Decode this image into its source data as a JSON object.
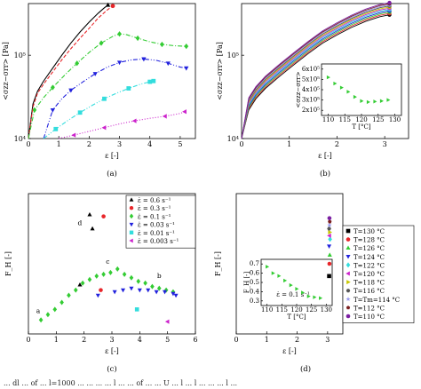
{
  "caption_text": "... dl ... of ... l=1000 ... ... ... ... l ... ... of ... ... U ... l ... l ... ... ... l ...",
  "chart_data": [
    {
      "id": "a",
      "type": "line",
      "panel_label": "(a)",
      "xlabel": "ε [-]",
      "ylabel": "<σzz−σrr> [Pa]",
      "xlim": [
        0,
        5.5
      ],
      "ylim_log10": [
        4,
        5.62
      ],
      "yscale": "log",
      "xticks": [
        0,
        1,
        2,
        3,
        4,
        5
      ],
      "yticks": [
        {
          "v": 10000,
          "label": "10⁴"
        },
        {
          "v": 100000,
          "label": "10⁵"
        }
      ],
      "series": [
        {
          "color": "#000000",
          "style": "solid",
          "marker": "triangle",
          "x": [
            0,
            0.15,
            0.3,
            0.5,
            0.8,
            1.1,
            1.4,
            1.7,
            2.0,
            2.3,
            2.5,
            2.62
          ],
          "y": [
            10000,
            26000,
            37000,
            49000,
            70000,
            100000,
            140000,
            190000,
            250000,
            320000,
            370000,
            400000
          ]
        },
        {
          "color": "#e8262a",
          "style": "dashed",
          "marker": "circle",
          "x": [
            0,
            0.15,
            0.3,
            0.5,
            0.8,
            1.1,
            1.4,
            1.7,
            2.0,
            2.3,
            2.6,
            2.78
          ],
          "y": [
            10000,
            24000,
            35000,
            45000,
            63000,
            88000,
            120000,
            160000,
            210000,
            280000,
            350000,
            390000
          ]
        },
        {
          "color": "#33cc33",
          "style": "dashdot",
          "marker": "diamond",
          "x": [
            0,
            0.2,
            0.5,
            0.8,
            1.2,
            1.6,
            2.0,
            2.4,
            2.8,
            3.0,
            3.2,
            3.6,
            4.0,
            4.4,
            4.8,
            5.2
          ],
          "y": [
            10000,
            22000,
            31000,
            41000,
            58000,
            80000,
            108000,
            140000,
            170000,
            180000,
            178000,
            160000,
            145000,
            135000,
            130000,
            128000
          ]
        },
        {
          "color": "#2222dd",
          "style": "dashdotdot",
          "marker": "triangle-down",
          "x": [
            0.5,
            0.8,
            1.1,
            1.4,
            1.8,
            2.2,
            2.6,
            3.0,
            3.4,
            3.8,
            4.2,
            4.6,
            5.0,
            5.2
          ],
          "y": [
            10000,
            22000,
            30000,
            38000,
            48000,
            60000,
            72000,
            82000,
            88000,
            90000,
            87000,
            80000,
            72000,
            70000
          ]
        },
        {
          "color": "#33dddd",
          "style": "dashdotdot",
          "marker": "square",
          "x": [
            0.5,
            0.9,
            1.3,
            1.7,
            2.1,
            2.5,
            2.9,
            3.3,
            3.7,
            4.0,
            4.12
          ],
          "y": [
            10000,
            13000,
            16500,
            20500,
            25000,
            30000,
            35000,
            40000,
            45000,
            48000,
            49000
          ]
        },
        {
          "color": "#cc22cc",
          "style": "dotted",
          "marker": "triangle-left",
          "x": [
            1.0,
            1.5,
            2.0,
            2.5,
            3.0,
            3.5,
            4.0,
            4.5,
            5.0,
            5.15
          ],
          "y": [
            10000,
            11000,
            12200,
            13500,
            15000,
            16300,
            17500,
            18500,
            20000,
            21000
          ]
        }
      ]
    },
    {
      "id": "b",
      "type": "line",
      "panel_label": "(b)",
      "xlabel": "ε [-]",
      "ylabel": "<σzz−σrr> [Pa]",
      "xlim": [
        0,
        3.5
      ],
      "ylim_log10": [
        4,
        5.62
      ],
      "yscale": "log",
      "xticks": [
        0,
        1,
        2,
        3
      ],
      "yticks": [
        {
          "v": 10000,
          "label": "10⁴"
        },
        {
          "v": 100000,
          "label": "10⁵"
        }
      ],
      "series_colors": [
        "#000000",
        "#e8262a",
        "#33cc33",
        "#2222dd",
        "#33dddd",
        "#cc22cc",
        "#c8c800",
        "#555555",
        "#9999ee",
        "#7a1e1e",
        "#7b1fa2"
      ],
      "series_scale": [
        1.0,
        1.04,
        1.08,
        1.12,
        1.16,
        1.2,
        1.24,
        1.28,
        1.32,
        1.36,
        1.4
      ],
      "base_curve": {
        "x": [
          0,
          0.15,
          0.3,
          0.5,
          0.8,
          1.1,
          1.4,
          1.7,
          2.0,
          2.3,
          2.6,
          2.9,
          3.1
        ],
        "y": [
          10000,
          22000,
          30000,
          40000,
          56000,
          77000,
          105000,
          140000,
          175000,
          215000,
          255000,
          290000,
          305000
        ]
      },
      "inset": {
        "xlabel": "T [°C]",
        "ylabel": "<σzz−σrr>",
        "xticks": [
          110,
          115,
          120,
          125,
          130
        ],
        "yticks": [
          {
            "v": 200000,
            "label": "2x10⁵"
          },
          {
            "v": 300000,
            "label": "3x10⁵"
          },
          {
            "v": 400000,
            "label": "4x10⁵"
          },
          {
            "v": 500000,
            "label": "5x10⁵"
          },
          {
            "v": 600000,
            "label": "6x10⁵"
          }
        ],
        "xlim": [
          108,
          132
        ],
        "ylim": [
          150000,
          650000
        ],
        "points": {
          "x": [
            110,
            112,
            114,
            116,
            118,
            120,
            122,
            124,
            126,
            128
          ],
          "y": [
            520000,
            460000,
            420000,
            380000,
            330000,
            290000,
            280000,
            285000,
            290000,
            300000
          ]
        },
        "color": "#33cc33"
      }
    },
    {
      "id": "c",
      "type": "scatter",
      "panel_label": "(c)",
      "xlabel": "ε [-]",
      "ylabel": "F_H [-]",
      "xlim": [
        0,
        6
      ],
      "ylim": [
        0,
        0.8
      ],
      "xticks": [
        0,
        1,
        2,
        3,
        4,
        5,
        6
      ],
      "yticks": [],
      "legend_placement": "top-right",
      "series": [
        {
          "name": "ε̇ = 0.6 s⁻¹",
          "color": "#000000",
          "marker": "triangle",
          "x": [
            2.2,
            2.3,
            1.85
          ],
          "y": [
            0.68,
            0.6,
            0.28
          ]
        },
        {
          "name": "ε̇ = 0.3 s⁻¹",
          "color": "#e8262a",
          "marker": "circle",
          "x": [
            2.7,
            2.6
          ],
          "y": [
            0.67,
            0.25
          ]
        },
        {
          "name": "ε̇ = 0.1 s⁻¹",
          "color": "#33cc33",
          "marker": "diamond",
          "x": [
            0.45,
            0.7,
            0.95,
            1.2,
            1.45,
            1.7,
            1.95,
            2.2,
            2.45,
            2.7,
            2.95,
            3.2,
            3.45,
            3.7,
            3.95,
            4.2,
            4.45,
            4.7,
            4.95,
            5.2
          ],
          "y": [
            0.08,
            0.11,
            0.14,
            0.18,
            0.22,
            0.25,
            0.29,
            0.31,
            0.33,
            0.34,
            0.35,
            0.37,
            0.34,
            0.32,
            0.3,
            0.29,
            0.27,
            0.26,
            0.25,
            0.24
          ]
        },
        {
          "name": "ε̇ = 0.03 s⁻¹",
          "color": "#2222dd",
          "marker": "triangle-down",
          "x": [
            2.5,
            3.1,
            3.4,
            3.7,
            4.0,
            4.3,
            4.6,
            4.9,
            5.2,
            5.3
          ],
          "y": [
            0.22,
            0.24,
            0.25,
            0.26,
            0.25,
            0.25,
            0.24,
            0.24,
            0.23,
            0.22
          ]
        },
        {
          "name": "ε̇ = 0.01 s⁻¹",
          "color": "#33dddd",
          "marker": "square",
          "x": [
            3.9
          ],
          "y": [
            0.14
          ]
        },
        {
          "name": "ε̇ = 0.003 s⁻¹",
          "color": "#cc22cc",
          "marker": "triangle-left",
          "x": [
            5.0
          ],
          "y": [
            0.07
          ]
        }
      ],
      "annotations": [
        {
          "text": "a",
          "x": 0.35,
          "y": 0.12
        },
        {
          "text": "b",
          "x": 4.7,
          "y": 0.32
        },
        {
          "text": "c",
          "x": 2.85,
          "y": 0.4
        },
        {
          "text": "d",
          "x": 1.85,
          "y": 0.62
        }
      ]
    },
    {
      "id": "d",
      "type": "scatter",
      "panel_label": "(d)",
      "xlabel": "ε [-]",
      "ylabel": "F_H [-]",
      "xlim": [
        0,
        3.5
      ],
      "ylim": [
        0,
        0.8
      ],
      "xticks": [
        0,
        1,
        2,
        3
      ],
      "yticks": [],
      "legend_placement": "right",
      "series": [
        {
          "name": "T=130 °C",
          "color": "#000000",
          "marker": "square",
          "x": [
            3.05
          ],
          "y": [
            0.33
          ]
        },
        {
          "name": "T=128 °C",
          "color": "#e8262a",
          "marker": "circle",
          "x": [
            3.06
          ],
          "y": [
            0.4
          ]
        },
        {
          "name": "T=126 °C",
          "color": "#33cc33",
          "marker": "triangle",
          "x": [
            3.07
          ],
          "y": [
            0.45
          ]
        },
        {
          "name": "T=124 °C",
          "color": "#2222dd",
          "marker": "triangle-down",
          "x": [
            3.05
          ],
          "y": [
            0.5
          ]
        },
        {
          "name": "T=122 °C",
          "color": "#33dddd",
          "marker": "diamond",
          "x": [
            3.08
          ],
          "y": [
            0.54
          ]
        },
        {
          "name": "T=120 °C",
          "color": "#cc22cc",
          "marker": "triangle-left",
          "x": [
            3.06
          ],
          "y": [
            0.56
          ]
        },
        {
          "name": "T=118 °C",
          "color": "#c8c800",
          "marker": "triangle-right",
          "x": [
            3.07
          ],
          "y": [
            0.58
          ]
        },
        {
          "name": "T=116 °C",
          "color": "#555555",
          "marker": "hexagon",
          "x": [
            3.05
          ],
          "y": [
            0.6
          ]
        },
        {
          "name": "T=Tm=114 °C",
          "color": "#9999ee",
          "marker": "star",
          "x": [
            3.06
          ],
          "y": [
            0.62
          ]
        },
        {
          "name": "T=112 °C",
          "color": "#7a1e1e",
          "marker": "pentagon",
          "x": [
            3.07
          ],
          "y": [
            0.64
          ]
        },
        {
          "name": "T=110 °C",
          "color": "#7b1fa2",
          "marker": "circle",
          "x": [
            3.06
          ],
          "y": [
            0.66
          ]
        }
      ],
      "inset": {
        "xlabel": "T [°C]",
        "ylabel": "F_H [-]",
        "annotation": "ε̇ = 0.1 s⁻¹",
        "xticks": [
          110,
          115,
          120,
          125,
          130
        ],
        "yticks": [
          {
            "v": 0.3,
            "label": "0.3"
          },
          {
            "v": 0.4,
            "label": "0.4"
          },
          {
            "v": 0.5,
            "label": "0.5"
          },
          {
            "v": 0.6,
            "label": "0.6"
          },
          {
            "v": 0.7,
            "label": "0.7"
          }
        ],
        "xlim": [
          108,
          132
        ],
        "ylim": [
          0.25,
          0.75
        ],
        "points": {
          "x": [
            110,
            112,
            114,
            116,
            118,
            120,
            122,
            124,
            126,
            128
          ],
          "y": [
            0.67,
            0.6,
            0.57,
            0.52,
            0.47,
            0.43,
            0.39,
            0.35,
            0.34,
            0.33
          ]
        },
        "color": "#33cc33"
      }
    }
  ]
}
